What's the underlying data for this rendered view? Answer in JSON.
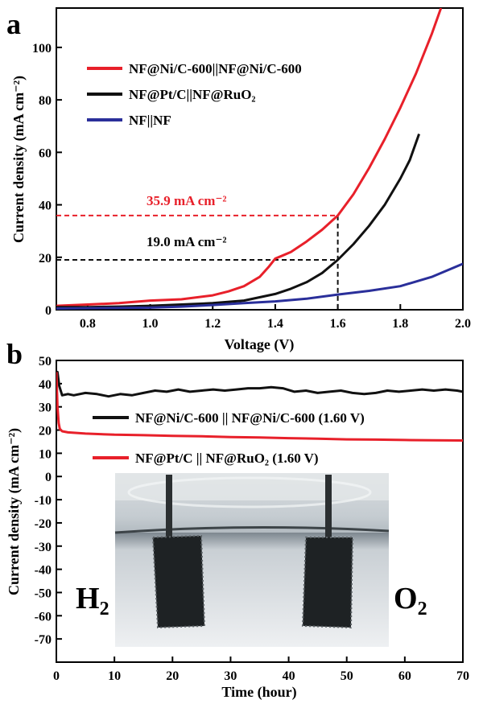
{
  "chart_data": [
    {
      "type": "line",
      "panel_label": "a",
      "xlabel": "Voltage (V)",
      "ylabel": "Current density (mA cm⁻²)",
      "xlim": [
        0.7,
        2.0
      ],
      "ylim": [
        0,
        115
      ],
      "xticks": [
        0.8,
        1.0,
        1.2,
        1.4,
        1.6,
        1.8,
        2.0
      ],
      "xtick_labels": [
        "0.8",
        "1.0",
        "1.2",
        "1.4",
        "1.6",
        "1.8",
        "2.0"
      ],
      "yticks": [
        0,
        20,
        40,
        60,
        80,
        100
      ],
      "ytick_labels": [
        "0",
        "20",
        "40",
        "60",
        "80",
        "100"
      ],
      "legend_position": "top-left",
      "series": [
        {
          "name": "NF@Ni/C-600||NF@Ni/C-600",
          "color": "#e8202a",
          "x": [
            0.7,
            0.8,
            0.9,
            1.0,
            1.1,
            1.2,
            1.25,
            1.3,
            1.35,
            1.38,
            1.4,
            1.42,
            1.45,
            1.5,
            1.55,
            1.6,
            1.65,
            1.7,
            1.75,
            1.8,
            1.85,
            1.9,
            1.93
          ],
          "y": [
            1.5,
            2.0,
            2.5,
            3.5,
            4.0,
            5.5,
            7.0,
            9.0,
            12.5,
            16.5,
            19.5,
            20.5,
            22.0,
            26.0,
            30.5,
            35.9,
            44.0,
            54.0,
            65.0,
            77.0,
            90.0,
            105.0,
            115.0
          ]
        },
        {
          "name": "NF@Pt/C||NF@RuO₂",
          "color": "#111111",
          "x": [
            0.7,
            0.8,
            0.9,
            1.0,
            1.1,
            1.2,
            1.3,
            1.4,
            1.45,
            1.5,
            1.55,
            1.6,
            1.65,
            1.7,
            1.75,
            1.8,
            1.83,
            1.86
          ],
          "y": [
            1.0,
            1.0,
            1.2,
            1.5,
            2.0,
            2.5,
            3.5,
            6.0,
            8.0,
            10.5,
            14.0,
            19.0,
            25.0,
            32.0,
            40.0,
            50.0,
            57.0,
            67.0
          ]
        },
        {
          "name": "NF||NF",
          "color": "#2a2f9a",
          "x": [
            0.7,
            0.8,
            0.9,
            1.0,
            1.1,
            1.2,
            1.3,
            1.4,
            1.5,
            1.6,
            1.7,
            1.8,
            1.9,
            2.0
          ],
          "y": [
            0.5,
            0.6,
            0.7,
            0.8,
            1.2,
            1.8,
            2.5,
            3.2,
            4.2,
            5.8,
            7.2,
            9.0,
            12.5,
            17.5
          ]
        }
      ],
      "annotations": [
        {
          "text": "35.9 mA cm⁻²",
          "x": 1.6,
          "y": 35.9,
          "color": "#e8202a"
        },
        {
          "text": "19.0 mA cm⁻²",
          "x": 1.6,
          "y": 19.0,
          "color": "#111111"
        }
      ]
    },
    {
      "type": "line",
      "panel_label": "b",
      "xlabel": "Time (hour)",
      "ylabel": "Current density (mA cm⁻²)",
      "xlim": [
        0,
        70
      ],
      "ylim": [
        -80,
        50
      ],
      "xticks": [
        0,
        10,
        20,
        30,
        40,
        50,
        60,
        70
      ],
      "xtick_labels": [
        "0",
        "10",
        "20",
        "30",
        "40",
        "50",
        "60",
        "70"
      ],
      "yticks": [
        50,
        40,
        30,
        20,
        10,
        0,
        -10,
        -20,
        -30,
        -40,
        -50,
        -60,
        -70
      ],
      "ytick_labels": [
        "50",
        "40",
        "30",
        "20",
        "10",
        "0",
        "-10",
        "-20",
        "-30",
        "-40",
        "-50",
        "-60",
        "-70"
      ],
      "legend_position": "upper-middle",
      "series": [
        {
          "name": "NF@Ni/C-600 || NF@Ni/C-600 (1.60 V)",
          "color": "#111111",
          "x": [
            0,
            0.2,
            0.5,
            1,
            2,
            3,
            5,
            7,
            9,
            11,
            13,
            15,
            17,
            19,
            21,
            23,
            25,
            27,
            29,
            31,
            33,
            35,
            37,
            39,
            41,
            43,
            45,
            47,
            49,
            51,
            53,
            55,
            57,
            59,
            61,
            63,
            65,
            67,
            69,
            70
          ],
          "y": [
            41,
            45,
            39,
            35,
            35.5,
            35,
            36,
            35.5,
            34.5,
            35.5,
            35,
            36,
            37,
            36.5,
            37.5,
            36.5,
            37,
            37.5,
            37,
            37.5,
            38,
            38,
            38.5,
            38,
            36.5,
            37,
            36,
            36.5,
            37,
            36,
            35.5,
            36,
            37,
            36.5,
            37,
            37.5,
            37,
            37.5,
            37,
            36.5
          ]
        },
        {
          "name": "NF@Pt/C || NF@RuO₂ (1.60 V)",
          "color": "#e8202a",
          "x": [
            0,
            0.2,
            0.4,
            0.6,
            1,
            2,
            5,
            10,
            15,
            20,
            25,
            30,
            35,
            40,
            45,
            50,
            55,
            60,
            65,
            70
          ],
          "y": [
            45,
            30,
            23,
            20.5,
            19.5,
            19,
            18.5,
            18,
            17.8,
            17.5,
            17.3,
            17,
            16.8,
            16.5,
            16.3,
            16,
            15.9,
            15.7,
            15.6,
            15.5
          ]
        }
      ],
      "inset": {
        "caption": "electrolysis-cell-photo",
        "left_gas": "H",
        "left_gas_sub": "2",
        "right_gas": "O",
        "right_gas_sub": "2"
      }
    }
  ]
}
